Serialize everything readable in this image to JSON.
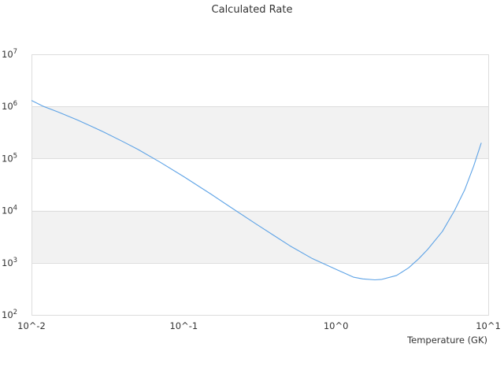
{
  "chart_data": {
    "type": "line",
    "title": "Calculated Rate",
    "xlabel": "Temperature (GK)",
    "ylabel": "",
    "x_scale": "log",
    "y_scale": "log",
    "xlim": [
      0.01,
      10
    ],
    "ylim": [
      100,
      10000000
    ],
    "x_ticks": [
      {
        "value": 0.01,
        "label": "10^-2"
      },
      {
        "value": 0.1,
        "label": "10^-1"
      },
      {
        "value": 1,
        "label": "10^0"
      },
      {
        "value": 10,
        "label": "10^1"
      }
    ],
    "y_ticks": [
      {
        "value": 100,
        "base": "10",
        "exp": "2"
      },
      {
        "value": 1000,
        "base": "10",
        "exp": "3"
      },
      {
        "value": 10000,
        "base": "10",
        "exp": "4"
      },
      {
        "value": 100000,
        "base": "10",
        "exp": "5"
      },
      {
        "value": 1000000,
        "base": "10",
        "exp": "6"
      },
      {
        "value": 10000000,
        "base": "10",
        "exp": "7"
      }
    ],
    "band_color": "#f2f2f2",
    "grid_color": "#dddddd",
    "series": [
      {
        "color": "#5ea3e6",
        "points": [
          [
            0.01,
            1300000
          ],
          [
            0.012,
            1000000
          ],
          [
            0.015,
            780000
          ],
          [
            0.02,
            550000
          ],
          [
            0.025,
            410000
          ],
          [
            0.03,
            320000
          ],
          [
            0.04,
            210000
          ],
          [
            0.05,
            150000
          ],
          [
            0.07,
            85000
          ],
          [
            0.1,
            45000
          ],
          [
            0.15,
            21000
          ],
          [
            0.2,
            12000
          ],
          [
            0.3,
            5500
          ],
          [
            0.4,
            3200
          ],
          [
            0.5,
            2100
          ],
          [
            0.7,
            1200
          ],
          [
            1.0,
            750
          ],
          [
            1.3,
            530
          ],
          [
            1.5,
            490
          ],
          [
            1.8,
            470
          ],
          [
            2.0,
            480
          ],
          [
            2.5,
            570
          ],
          [
            3.0,
            800
          ],
          [
            3.5,
            1200
          ],
          [
            4.0,
            1800
          ],
          [
            5.0,
            4000
          ],
          [
            6.0,
            10000
          ],
          [
            7.0,
            25000
          ],
          [
            8.0,
            70000
          ],
          [
            9.0,
            200000
          ]
        ]
      }
    ]
  }
}
